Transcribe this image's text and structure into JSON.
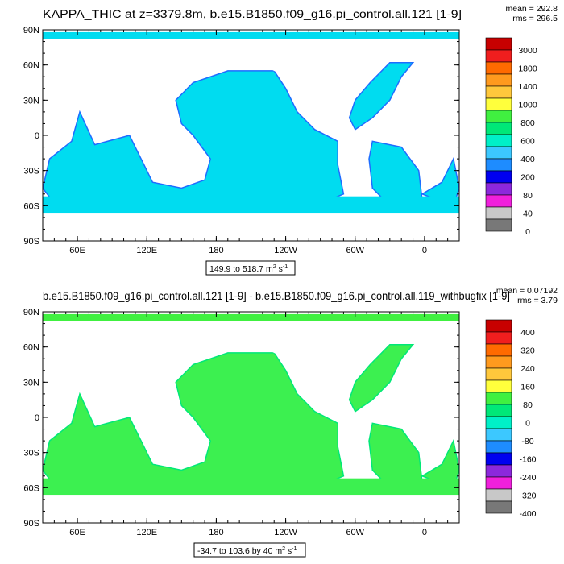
{
  "chart_data": [
    {
      "type": "heatmap",
      "title": "KAPPA_THIC at z=3379.8m, b.e15.B1850.f09_g16.pi_control.all.121 [1-9]",
      "stats": [
        "mean = 292.8",
        "rms = 296.5"
      ],
      "range_label": "149.9 to 518.7 m",
      "range_units": "2 s",
      "range_units_sup2": "-1",
      "yticks": [
        "90N",
        "60N",
        "30N",
        "0",
        "30S",
        "60S",
        "90S"
      ],
      "ytick_values": [
        90,
        60,
        30,
        0,
        -30,
        -60,
        -90
      ],
      "xticks": [
        "60E",
        "120E",
        "180",
        "120W",
        "60W",
        "0"
      ],
      "xtick_values": [
        60,
        120,
        180,
        240,
        300,
        360
      ],
      "xlim": [
        30,
        390
      ],
      "ylim": [
        -90,
        90
      ],
      "colorbar_labels": [
        "3000",
        "1800",
        "1400",
        "1000",
        "800",
        "600",
        "400",
        "200",
        "80",
        "40",
        "0"
      ],
      "colorbar_colors": [
        "#c80000",
        "#f01e1e",
        "#ff6a00",
        "#ff9a1e",
        "#ffc83c",
        "#ffff3c",
        "#40f040",
        "#00e878",
        "#00f0c8",
        "#3cc8ff",
        "#1e8cff",
        "#0000f0",
        "#8c28dc",
        "#f020dc",
        "#c8c8c8",
        "#787878"
      ],
      "dominant_color": "#00dcf0",
      "field_value_range": [
        149.9,
        518.7
      ]
    },
    {
      "type": "heatmap",
      "title": "b.e15.B1850.f09_g16.pi_control.all.121 [1-9] - b.e15.B1850.f09_g16.pi_control.all.119_withbugfix [1-9]",
      "stats": [
        "mean = 0.07192",
        "rms = 3.79"
      ],
      "range_label": "-34.7 to 103.6 by 40 m",
      "range_units": "2 s",
      "range_units_sup2": "-1",
      "yticks": [
        "90N",
        "60N",
        "30N",
        "0",
        "30S",
        "60S",
        "90S"
      ],
      "ytick_values": [
        90,
        60,
        30,
        0,
        -30,
        -60,
        -90
      ],
      "xticks": [
        "60E",
        "120E",
        "180",
        "120W",
        "60W",
        "0"
      ],
      "xtick_values": [
        60,
        120,
        180,
        240,
        300,
        360
      ],
      "xlim": [
        30,
        390
      ],
      "ylim": [
        -90,
        90
      ],
      "colorbar_labels": [
        "400",
        "320",
        "240",
        "160",
        "80",
        "0",
        "-80",
        "-160",
        "-240",
        "-320",
        "-400"
      ],
      "colorbar_colors": [
        "#c80000",
        "#f01e1e",
        "#ff6a00",
        "#ff9a1e",
        "#ffc83c",
        "#ffff3c",
        "#40f040",
        "#00e878",
        "#00f0c8",
        "#3cc8ff",
        "#1e8cff",
        "#0000f0",
        "#8c28dc",
        "#f020dc",
        "#c8c8c8",
        "#787878"
      ],
      "dominant_color": "#3cf050",
      "field_value_range": [
        -34.7,
        103.6
      ]
    }
  ]
}
